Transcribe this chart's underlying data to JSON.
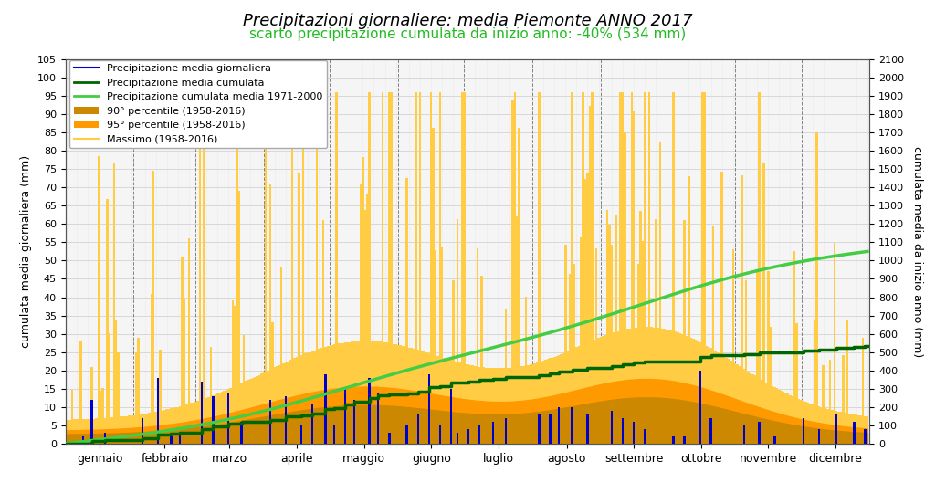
{
  "title": "Precipitazioni giornaliere: media Piemonte ANNO 2017",
  "subtitle": "scarto precipitazione cumulata da inizio anno: -40% (534 mm)",
  "subtitle_color": "#22bb22",
  "ylabel_left": "cumulata media giornaliera (mm)",
  "ylabel_right": "cumulata media da inizio anno (mm)",
  "months": [
    "gennaio",
    "febbraio",
    "marzo",
    "aprile",
    "maggio",
    "giugno",
    "luglio",
    "agosto",
    "settembre",
    "ottobre",
    "novembre",
    "dicembre"
  ],
  "ylim_left": [
    0,
    105
  ],
  "ylim_right": [
    0,
    2100
  ],
  "bg_color": "#ffffff",
  "grid_color": "#cccccc",
  "title_style": "italic",
  "color_p90": "#cc8800",
  "color_p95": "#ff9900",
  "color_max": "#ffcc44",
  "color_blue": "#0000cc",
  "color_cum2017": "#006600",
  "color_clim": "#44cc44",
  "cum2017_total": 534,
  "cum_clim_total": 1050
}
